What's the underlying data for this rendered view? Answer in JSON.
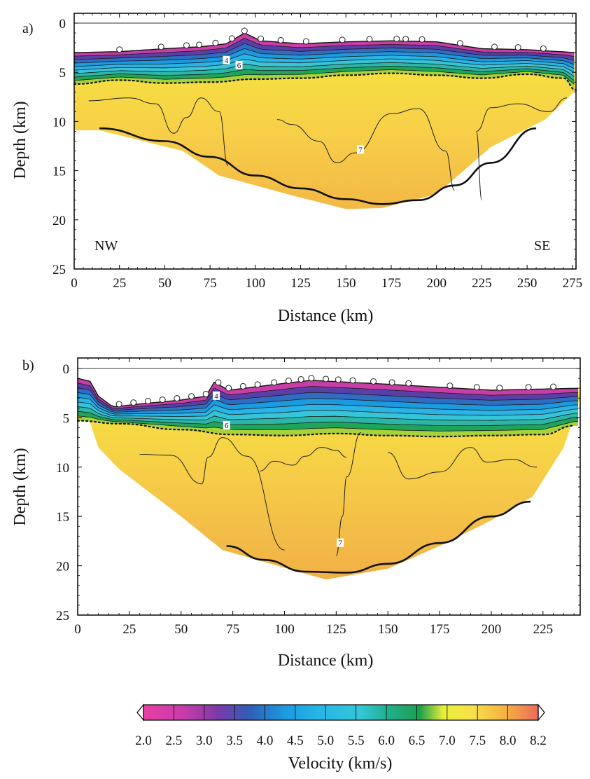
{
  "chart_data": [
    {
      "type": "heatmap",
      "panel_label": "a)",
      "xlabel": "Distance (km)",
      "ylabel": "Depth (km)",
      "xlim": [
        0,
        277
      ],
      "ylim": [
        25,
        0
      ],
      "xticks": [
        0,
        25,
        50,
        75,
        100,
        125,
        150,
        175,
        200,
        225,
        250,
        275
      ],
      "yticks": [
        0,
        5,
        10,
        15,
        20,
        25
      ],
      "annotations": [
        "NW",
        "SE"
      ],
      "stations_x_km": [
        25,
        48,
        62,
        69,
        78,
        87,
        94,
        103,
        114,
        128,
        148,
        163,
        178,
        183,
        192,
        213,
        232,
        245,
        259
      ],
      "surface_depth_km": [
        [
          0,
          3.0
        ],
        [
          25,
          2.9
        ],
        [
          50,
          2.6
        ],
        [
          70,
          2.4
        ],
        [
          84,
          2.1
        ],
        [
          94,
          1.0
        ],
        [
          103,
          1.8
        ],
        [
          125,
          2.1
        ],
        [
          150,
          1.9
        ],
        [
          175,
          1.8
        ],
        [
          200,
          1.9
        ],
        [
          225,
          2.6
        ],
        [
          250,
          2.7
        ],
        [
          277,
          3.0
        ]
      ],
      "moho_depth_km": [
        [
          14,
          10.7
        ],
        [
          50,
          12.0
        ],
        [
          75,
          13.6
        ],
        [
          100,
          15.5
        ],
        [
          125,
          16.8
        ],
        [
          150,
          17.9
        ],
        [
          170,
          18.4
        ],
        [
          190,
          18.0
        ],
        [
          210,
          16.5
        ],
        [
          230,
          14.2
        ],
        [
          255,
          10.7
        ]
      ],
      "dotted_boundary_km": [
        [
          0,
          6.2
        ],
        [
          25,
          5.8
        ],
        [
          50,
          6.1
        ],
        [
          75,
          6.0
        ],
        [
          100,
          5.7
        ],
        [
          125,
          5.6
        ],
        [
          150,
          5.3
        ],
        [
          175,
          5.1
        ],
        [
          200,
          5.3
        ],
        [
          225,
          5.6
        ],
        [
          250,
          5.2
        ],
        [
          270,
          5.6
        ],
        [
          277,
          6.8
        ]
      ],
      "contour_labels": [
        "4",
        "6",
        "7"
      ]
    },
    {
      "type": "heatmap",
      "panel_label": "b)",
      "xlabel": "Distance (km)",
      "ylabel": "Depth (km)",
      "xlim": [
        0,
        243
      ],
      "ylim": [
        25,
        0
      ],
      "xticks": [
        0,
        25,
        50,
        75,
        100,
        125,
        150,
        175,
        200,
        225
      ],
      "yticks": [
        0,
        5,
        10,
        15,
        20,
        25
      ],
      "stations_x_km": [
        20,
        27,
        34,
        41,
        48,
        55,
        62,
        68,
        73,
        80,
        87,
        95,
        102,
        108,
        113,
        120,
        126,
        133,
        143,
        152,
        160,
        180,
        193,
        204,
        218,
        230
      ],
      "surface_depth_km": [
        [
          0,
          1.0
        ],
        [
          6,
          1.3
        ],
        [
          10,
          2.8
        ],
        [
          17,
          3.9
        ],
        [
          30,
          3.6
        ],
        [
          50,
          3.2
        ],
        [
          62,
          2.8
        ],
        [
          66,
          1.4
        ],
        [
          73,
          2.2
        ],
        [
          100,
          1.5
        ],
        [
          113,
          1.2
        ],
        [
          150,
          1.6
        ],
        [
          200,
          2.2
        ],
        [
          243,
          2.0
        ]
      ],
      "moho_depth_km": [
        [
          72,
          18.0
        ],
        [
          90,
          19.4
        ],
        [
          110,
          20.6
        ],
        [
          130,
          20.7
        ],
        [
          150,
          19.8
        ],
        [
          175,
          17.7
        ],
        [
          200,
          15.0
        ],
        [
          219,
          13.5
        ]
      ],
      "dotted_boundary_km": [
        [
          0,
          5.3
        ],
        [
          20,
          5.6
        ],
        [
          50,
          6.2
        ],
        [
          75,
          6.7
        ],
        [
          100,
          6.8
        ],
        [
          125,
          6.6
        ],
        [
          150,
          6.8
        ],
        [
          175,
          6.9
        ],
        [
          200,
          6.8
        ],
        [
          225,
          6.7
        ],
        [
          240,
          5.8
        ]
      ],
      "contour_labels": [
        "4",
        "6",
        "7"
      ]
    }
  ],
  "colorbar": {
    "label": "Velocity (km/s)",
    "tick_labels": [
      "2.0",
      "2.5",
      "3.0",
      "3.5",
      "4.0",
      "4.5",
      "5.0",
      "5.5",
      "6.0",
      "6.5",
      "7.0",
      "7.5",
      "8.0",
      "8.2"
    ],
    "colors": [
      "#e83fa6",
      "#c93ca9",
      "#7a3aa8",
      "#2f5fb8",
      "#1b9be0",
      "#27b7e8",
      "#35c6d8",
      "#1fb08c",
      "#1ea04e",
      "#e8ef3a",
      "#f7e24a",
      "#f4b040",
      "#ed6a5c"
    ]
  }
}
